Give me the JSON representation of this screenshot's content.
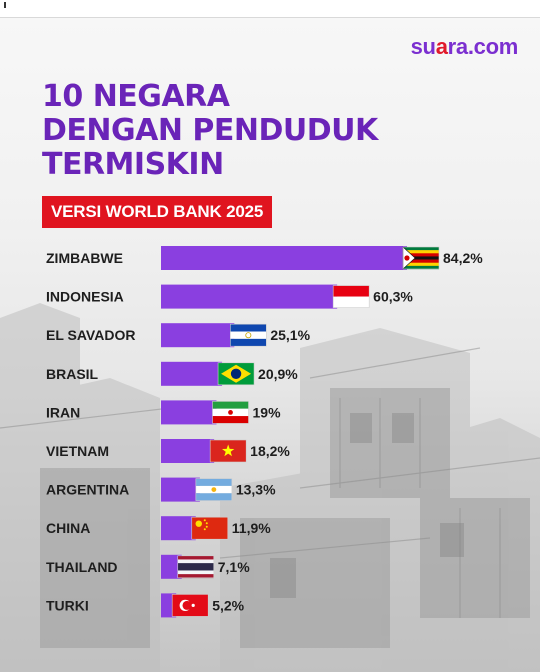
{
  "header": {
    "logo_part1": "su",
    "logo_part2": "a",
    "logo_part3": "ra.com",
    "title_lines": [
      "10 NEGARA",
      "DENGAN PENDUDUK",
      "TERMISKIN"
    ],
    "subtitle": "VERSI WORLD BANK 2025"
  },
  "colors": {
    "brand_purple": "#6a24b8",
    "bar_purple": "#8a3fe0",
    "accent_red": "#e0141f"
  },
  "chart_data": {
    "type": "bar",
    "orientation": "horizontal",
    "title": "10 NEGARA DENGAN PENDUDUK TERMISKIN",
    "subtitle": "VERSI WORLD BANK 2025",
    "categories": [
      "ZIMBABWE",
      "INDONESIA",
      "EL SAVADOR",
      "BRASIL",
      "IRAN",
      "VIETNAM",
      "ARGENTINA",
      "CHINA",
      "THAILAND",
      "TURKI"
    ],
    "values": [
      84.2,
      60.3,
      25.1,
      20.9,
      19,
      18.2,
      13.3,
      11.9,
      7.1,
      5.2
    ],
    "value_labels": [
      "84,2%",
      "60,3%",
      "25,1%",
      "20,9%",
      "19%",
      "18,2%",
      "13,3%",
      "11,9%",
      "7,1%",
      "5,2%"
    ],
    "flags": [
      "zimbabwe-flag-icon",
      "indonesia-flag-icon",
      "el-salvador-flag-icon",
      "brazil-flag-icon",
      "iran-flag-icon",
      "vietnam-flag-icon",
      "argentina-flag-icon",
      "china-flag-icon",
      "thailand-flag-icon",
      "turkey-flag-icon"
    ],
    "xlim": [
      0,
      84.2
    ],
    "grid": false,
    "legend": "none"
  }
}
